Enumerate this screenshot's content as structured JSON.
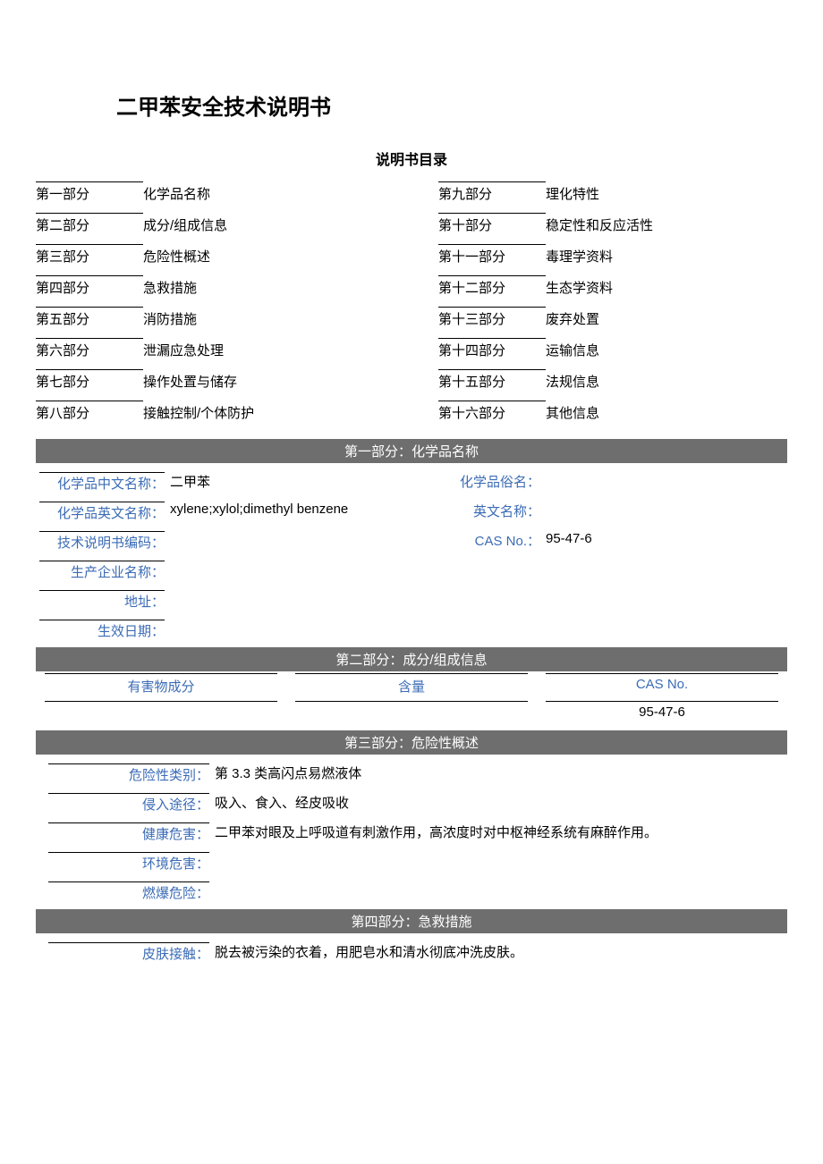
{
  "title": "二甲苯安全技术说明书",
  "toc_title": "说明书目录",
  "toc_left": [
    {
      "part": "第一部分",
      "name": "化学品名称"
    },
    {
      "part": "第二部分",
      "name": "成分/组成信息"
    },
    {
      "part": "第三部分",
      "name": "危险性概述"
    },
    {
      "part": "第四部分",
      "name": "急救措施"
    },
    {
      "part": "第五部分",
      "name": "消防措施"
    },
    {
      "part": "第六部分",
      "name": "泄漏应急处理"
    },
    {
      "part": "第七部分",
      "name": "操作处置与储存"
    },
    {
      "part": "第八部分",
      "name": "接触控制/个体防护"
    }
  ],
  "toc_right": [
    {
      "part": "第九部分",
      "name": "理化特性"
    },
    {
      "part": "第十部分",
      "name": "稳定性和反应活性"
    },
    {
      "part": "第十一部分",
      "name": "毒理学资料"
    },
    {
      "part": "第十二部分",
      "name": "生态学资料"
    },
    {
      "part": "第十三部分",
      "name": "废弃处置"
    },
    {
      "part": "第十四部分",
      "name": "运输信息"
    },
    {
      "part": "第十五部分",
      "name": "法规信息"
    },
    {
      "part": "第十六部分",
      "name": "其他信息"
    }
  ],
  "section1": {
    "header": "第一部分：化学品名称",
    "rows": [
      {
        "l1": "化学品中文名称：",
        "v1": "二甲苯",
        "l2": "化学品俗名：",
        "v2": ""
      },
      {
        "l1": "化学品英文名称：",
        "v1": "xylene;xylol;dimethyl benzene",
        "l2": "英文名称：",
        "v2": ""
      },
      {
        "l1": "技术说明书编码：",
        "v1": "",
        "l2": "CAS No.：",
        "v2": "95-47-6"
      },
      {
        "l1": "生产企业名称：",
        "v1": "",
        "l2": "",
        "v2": ""
      },
      {
        "l1": "地址：",
        "v1": "",
        "l2": "",
        "v2": ""
      },
      {
        "l1": "生效日期：",
        "v1": "",
        "l2": "",
        "v2": ""
      }
    ]
  },
  "section2": {
    "header": "第二部分：成分/组成信息",
    "cols": [
      "有害物成分",
      "含量",
      "CAS No."
    ],
    "row": [
      "",
      "",
      "95-47-6"
    ]
  },
  "section3": {
    "header": "第三部分：危险性概述",
    "rows": [
      {
        "label": "危险性类别：",
        "value": "第 3.3 类高闪点易燃液体"
      },
      {
        "label": "侵入途径：",
        "value": "吸入、食入、经皮吸收"
      },
      {
        "label": "健康危害：",
        "value": "二甲苯对眼及上呼吸道有刺激作用，高浓度时对中枢神经系统有麻醉作用。"
      },
      {
        "label": "环境危害：",
        "value": ""
      },
      {
        "label": "燃爆危险：",
        "value": ""
      }
    ]
  },
  "section4": {
    "header": "第四部分：急救措施",
    "rows": [
      {
        "label": "皮肤接触：",
        "value": "脱去被污染的衣着，用肥皂水和清水彻底冲洗皮肤。"
      }
    ]
  },
  "colors": {
    "header_bg": "#6e6e6e",
    "header_fg": "#ffffff",
    "label_color": "#3b6bb5",
    "text_color": "#000000",
    "background": "#ffffff"
  }
}
